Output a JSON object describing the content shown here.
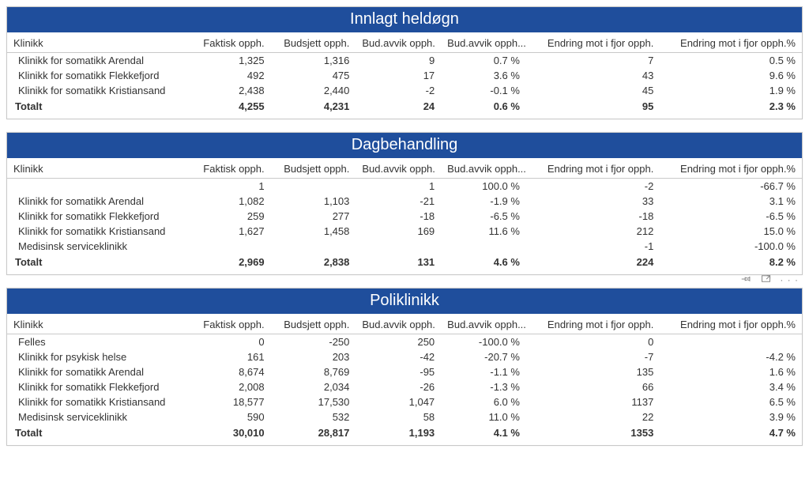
{
  "columns": [
    "Klinikk",
    "Faktisk opph.",
    "Budsjett opph.",
    "Bud.avvik opph.",
    "Bud.avvik opph....",
    "Endring mot i fjor opph.",
    "Endring mot i fjor opph.%"
  ],
  "totalLabel": "Totalt",
  "sections": [
    {
      "title": "Innlagt heldøgn",
      "rows": [
        {
          "c": [
            "Klinikk for somatikk Arendal",
            "1,325",
            "1,316",
            "9",
            "0.7 %",
            "7",
            "0.5 %"
          ]
        },
        {
          "c": [
            "Klinikk for somatikk Flekkefjord",
            "492",
            "475",
            "17",
            "3.6 %",
            "43",
            "9.6 %"
          ]
        },
        {
          "c": [
            "Klinikk for somatikk Kristiansand",
            "2,438",
            "2,440",
            "-2",
            "-0.1 %",
            "45",
            "1.9 %"
          ]
        }
      ],
      "total": [
        "4,255",
        "4,231",
        "24",
        "0.6 %",
        "95",
        "2.3 %"
      ]
    },
    {
      "title": "Dagbehandling",
      "rows": [
        {
          "c": [
            "",
            "1",
            "",
            "1",
            "100.0 %",
            "-2",
            "-66.7 %"
          ]
        },
        {
          "c": [
            "Klinikk for somatikk Arendal",
            "1,082",
            "1,103",
            "-21",
            "-1.9 %",
            "33",
            "3.1 %"
          ]
        },
        {
          "c": [
            "Klinikk for somatikk Flekkefjord",
            "259",
            "277",
            "-18",
            "-6.5 %",
            "-18",
            "-6.5 %"
          ]
        },
        {
          "c": [
            "Klinikk for somatikk Kristiansand",
            "1,627",
            "1,458",
            "169",
            "11.6 %",
            "212",
            "15.0 %"
          ]
        },
        {
          "c": [
            "Medisinsk serviceklinikk",
            "",
            "",
            "",
            "",
            "-1",
            "-100.0 %"
          ]
        }
      ],
      "total": [
        "2,969",
        "2,838",
        "131",
        "4.6 %",
        "224",
        "8.2 %"
      ]
    },
    {
      "title": "Poliklinikk",
      "toolbar": true,
      "rows": [
        {
          "c": [
            "Felles",
            "0",
            "-250",
            "250",
            "-100.0 %",
            "0",
            ""
          ]
        },
        {
          "c": [
            "Klinikk for psykisk helse",
            "161",
            "203",
            "-42",
            "-20.7 %",
            "-7",
            "-4.2 %"
          ]
        },
        {
          "c": [
            "Klinikk for somatikk Arendal",
            "8,674",
            "8,769",
            "-95",
            "-1.1 %",
            "135",
            "1.6 %"
          ]
        },
        {
          "c": [
            "Klinikk for somatikk Flekkefjord",
            "2,008",
            "2,034",
            "-26",
            "-1.3 %",
            "66",
            "3.4 %"
          ]
        },
        {
          "c": [
            "Klinikk for somatikk Kristiansand",
            "18,577",
            "17,530",
            "1,047",
            "6.0 %",
            "1137",
            "6.5 %"
          ]
        },
        {
          "c": [
            "Medisinsk serviceklinikk",
            "590",
            "532",
            "58",
            "11.0 %",
            "22",
            "3.9 %"
          ]
        }
      ],
      "total": [
        "30,010",
        "28,817",
        "1,193",
        "4.1 %",
        "1353",
        "4.7 %"
      ]
    }
  ]
}
